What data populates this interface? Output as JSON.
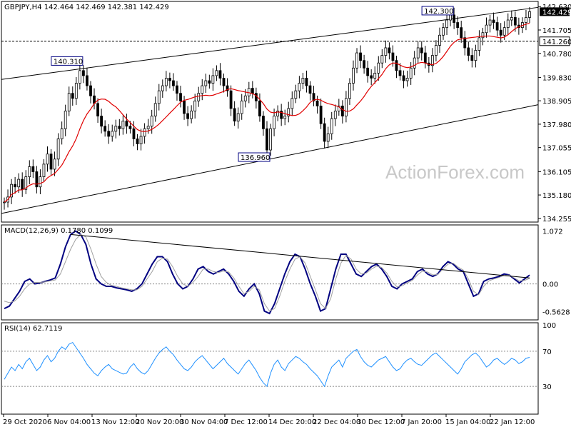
{
  "chart_data": [
    {
      "type": "candlestick",
      "panel": "price",
      "header": "GBPJPY,H4  142.464 142.469 142.381 142.429",
      "symbol": "GBPJPY",
      "timeframe": "H4",
      "ohlc_last": {
        "open": 142.464,
        "high": 142.469,
        "low": 142.381,
        "close": 142.429
      },
      "ylim": [
        134.25,
        142.75
      ],
      "yticks": [
        "142.630",
        "141.705",
        "140.780",
        "139.830",
        "138.905",
        "137.980",
        "137.055",
        "136.105",
        "135.180",
        "134.255"
      ],
      "price_label": "142.429",
      "level_label": "141.260",
      "level_value": 141.26,
      "closes": [
        134.9,
        135.1,
        135.6,
        135.5,
        135.8,
        135.4,
        135.9,
        136.3,
        136.1,
        135.5,
        135.9,
        136.4,
        136.8,
        136.2,
        136.6,
        137.4,
        137.8,
        138.5,
        139.2,
        139.0,
        139.6,
        140.1,
        139.9,
        139.5,
        139.1,
        138.8,
        138.3,
        137.9,
        137.7,
        137.5,
        137.7,
        137.9,
        137.8,
        138.1,
        137.9,
        137.8,
        137.4,
        137.2,
        137.5,
        137.8,
        137.9,
        138.3,
        138.8,
        139.3,
        139.5,
        139.8,
        139.7,
        139.5,
        139.2,
        138.9,
        138.4,
        138.2,
        138.5,
        138.9,
        139.2,
        139.5,
        139.7,
        139.6,
        139.9,
        140.1,
        139.8,
        139.5,
        139.3,
        138.6,
        138.1,
        138.4,
        138.9,
        139.1,
        139.4,
        139.2,
        138.9,
        138.3,
        137.8,
        136.96,
        137.8,
        138.3,
        138.5,
        138.2,
        138.3,
        138.6,
        139.0,
        139.3,
        139.6,
        139.8,
        139.5,
        139.2,
        138.9,
        138.7,
        138.0,
        137.3,
        137.6,
        138.2,
        138.5,
        138.7,
        138.3,
        139.0,
        139.6,
        140.2,
        140.8,
        140.5,
        140.2,
        139.9,
        139.8,
        140.0,
        140.4,
        140.7,
        141.0,
        140.8,
        140.5,
        140.1,
        139.9,
        139.7,
        139.8,
        140.2,
        140.6,
        141.0,
        140.8,
        140.4,
        140.3,
        140.7,
        141.1,
        141.5,
        141.8,
        142.1,
        142.3,
        142.0,
        141.8,
        141.4,
        141.0,
        140.7,
        140.5,
        140.9,
        141.4,
        141.6,
        141.9,
        142.1,
        142.0,
        141.7,
        141.5,
        141.8,
        142.1,
        142.2,
        141.9,
        141.8,
        142.0,
        142.2,
        142.43
      ],
      "extremes": [
        {
          "label": "140.310",
          "value": 140.31
        },
        {
          "label": "136.960",
          "value": 136.96
        },
        {
          "label": "142.300",
          "value": 142.3
        }
      ],
      "ma_color": "#e00000",
      "channel_upper": [
        139.75,
        142.6
      ],
      "channel_lower": [
        134.45,
        138.75
      ],
      "watermark": "ActionForex.com"
    },
    {
      "type": "line",
      "panel": "macd",
      "header": "MACD(12,26,9) 0.1780 0.1099",
      "ylim": [
        -0.7,
        1.15
      ],
      "yticks": [
        "1.072",
        "0.00",
        "-0.5628"
      ],
      "series": [
        {
          "color": "#000080",
          "values": [
            -0.5,
            -0.45,
            -0.3,
            -0.15,
            0.05,
            0.1,
            0.0,
            0.02,
            0.05,
            0.08,
            0.12,
            0.4,
            0.75,
            1.0,
            1.07,
            1.0,
            0.8,
            0.4,
            0.1,
            0.0,
            -0.05,
            -0.05,
            -0.08,
            -0.1,
            -0.12,
            -0.15,
            -0.1,
            0.0,
            0.2,
            0.4,
            0.55,
            0.55,
            0.45,
            0.2,
            0.0,
            -0.1,
            -0.05,
            0.1,
            0.3,
            0.35,
            0.25,
            0.2,
            0.25,
            0.3,
            0.2,
            0.05,
            -0.15,
            -0.25,
            -0.1,
            0.0,
            -0.2,
            -0.55,
            -0.6,
            -0.4,
            -0.1,
            0.2,
            0.45,
            0.6,
            0.55,
            0.3,
            0.0,
            -0.25,
            -0.55,
            -0.5,
            -0.1,
            0.3,
            0.6,
            0.6,
            0.4,
            0.2,
            0.15,
            0.25,
            0.35,
            0.4,
            0.3,
            0.15,
            -0.05,
            -0.1,
            0.0,
            0.05,
            0.1,
            0.25,
            0.3,
            0.2,
            0.15,
            0.2,
            0.35,
            0.45,
            0.4,
            0.3,
            0.25,
            0.0,
            -0.25,
            -0.2,
            0.05,
            0.1,
            0.12,
            0.15,
            0.2,
            0.18,
            0.1,
            0.02,
            0.1,
            0.178
          ]
        },
        {
          "color": "#a0a0a0",
          "values": [
            -0.35,
            -0.38,
            -0.35,
            -0.25,
            -0.1,
            0.0,
            0.03,
            0.03,
            0.04,
            0.06,
            0.08,
            0.2,
            0.45,
            0.7,
            0.9,
            1.0,
            0.95,
            0.7,
            0.4,
            0.15,
            0.03,
            -0.03,
            -0.05,
            -0.08,
            -0.1,
            -0.12,
            -0.12,
            -0.05,
            0.1,
            0.25,
            0.45,
            0.52,
            0.5,
            0.35,
            0.15,
            0.0,
            -0.05,
            0.03,
            0.15,
            0.3,
            0.3,
            0.25,
            0.23,
            0.26,
            0.24,
            0.12,
            -0.05,
            -0.2,
            -0.15,
            -0.05,
            -0.12,
            -0.4,
            -0.55,
            -0.5,
            -0.25,
            0.05,
            0.3,
            0.5,
            0.55,
            0.42,
            0.15,
            -0.12,
            -0.4,
            -0.5,
            -0.3,
            0.1,
            0.42,
            0.58,
            0.5,
            0.3,
            0.2,
            0.22,
            0.3,
            0.36,
            0.33,
            0.22,
            0.05,
            -0.06,
            -0.04,
            0.02,
            0.07,
            0.18,
            0.26,
            0.24,
            0.18,
            0.19,
            0.3,
            0.4,
            0.42,
            0.34,
            0.28,
            0.1,
            -0.15,
            -0.22,
            -0.05,
            0.06,
            0.1,
            0.13,
            0.17,
            0.18,
            0.12,
            0.06,
            0.07,
            0.11
          ]
        }
      ],
      "trendline": [
        1.0,
        0.12
      ]
    },
    {
      "type": "line",
      "panel": "rsi",
      "header": "RSI(14) 62.7119",
      "ylim": [
        0,
        100
      ],
      "yticks": [
        "100",
        "70",
        "30"
      ],
      "levels": [
        70,
        30
      ],
      "series": [
        {
          "color": "#1e90ff",
          "values": [
            38,
            45,
            52,
            48,
            55,
            50,
            58,
            62,
            55,
            48,
            52,
            60,
            65,
            58,
            62,
            70,
            75,
            72,
            78,
            80,
            74,
            68,
            62,
            55,
            50,
            45,
            42,
            48,
            52,
            55,
            50,
            48,
            46,
            44,
            45,
            52,
            56,
            50,
            46,
            44,
            48,
            55,
            62,
            68,
            72,
            75,
            70,
            66,
            60,
            55,
            50,
            48,
            52,
            58,
            62,
            65,
            60,
            55,
            50,
            54,
            58,
            62,
            56,
            52,
            48,
            44,
            50,
            56,
            60,
            54,
            48,
            40,
            34,
            30,
            45,
            55,
            60,
            52,
            48,
            56,
            60,
            64,
            62,
            58,
            55,
            50,
            46,
            42,
            36,
            30,
            42,
            52,
            56,
            60,
            52,
            62,
            66,
            70,
            72,
            64,
            58,
            54,
            52,
            56,
            60,
            62,
            64,
            58,
            52,
            48,
            50,
            56,
            60,
            62,
            58,
            55,
            54,
            58,
            62,
            66,
            68,
            64,
            60,
            56,
            52,
            48,
            44,
            50,
            58,
            62,
            66,
            68,
            64,
            58,
            52,
            55,
            60,
            62,
            58,
            55,
            58,
            62,
            60,
            56,
            58,
            62,
            63
          ]
        }
      ]
    }
  ],
  "x_axis": {
    "labels": [
      "29 Oct 2020",
      "6 Nov 04:00",
      "13 Nov 12:00",
      "20 Nov 20:00",
      "30 Nov 04:00",
      "7 Dec 12:00",
      "14 Dec 20:00",
      "22 Dec 04:00",
      "30 Dec 12:00",
      "7 Jan 20:00",
      "15 Jan 04:00",
      "22 Jan 12:00"
    ]
  }
}
